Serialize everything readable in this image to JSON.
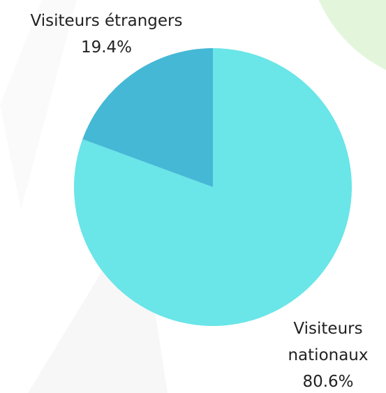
{
  "chart_data": {
    "type": "pie",
    "categories": [
      "Visiteurs nationaux",
      "Visiteurs étrangers"
    ],
    "values": [
      80.6,
      19.4
    ],
    "value_labels": [
      "80.6%",
      "19.4%"
    ],
    "colors": [
      "#6ae5e8",
      "#45b8d6"
    ]
  }
}
